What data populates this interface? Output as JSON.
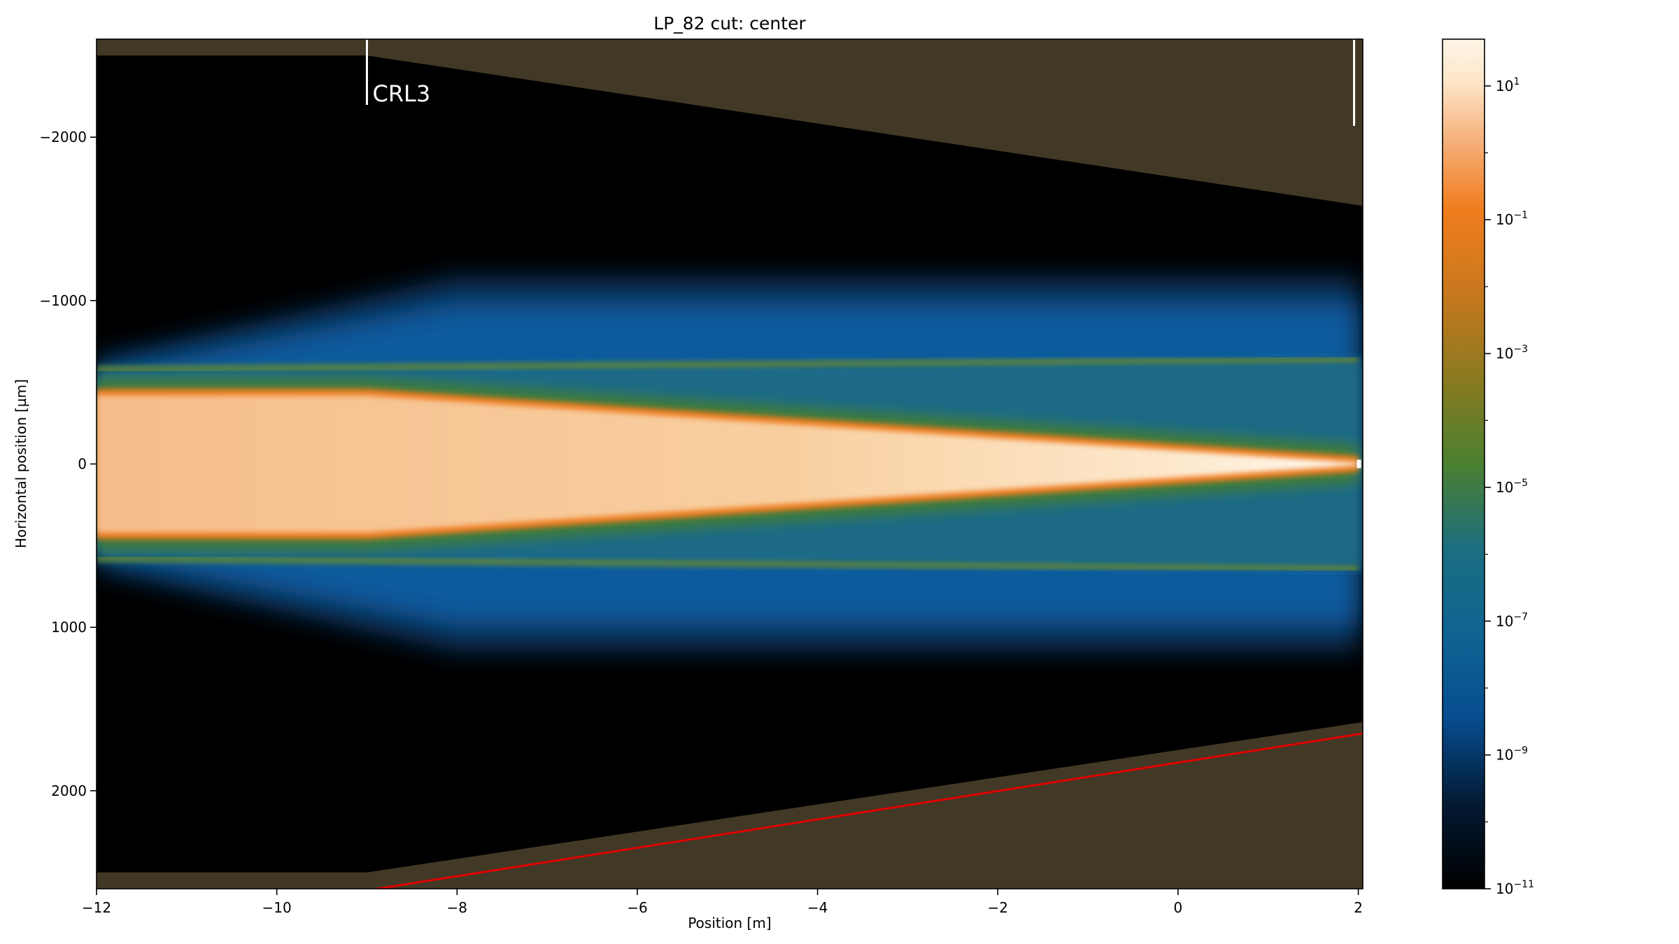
{
  "chart_data": {
    "type": "heatmap",
    "title": "LP_82 cut: center",
    "xlabel": "Position [m]",
    "ylabel": "Horizontal position [µm]",
    "xlim": [
      -12,
      2.05
    ],
    "ylim": [
      -2600,
      2600
    ],
    "y_inverted": true,
    "x_ticks": [
      {
        "value": -12,
        "label": "−12"
      },
      {
        "value": -10,
        "label": "−10"
      },
      {
        "value": -8,
        "label": "−8"
      },
      {
        "value": -6,
        "label": "−6"
      },
      {
        "value": -4,
        "label": "−4"
      },
      {
        "value": -2,
        "label": "−2"
      },
      {
        "value": 0,
        "label": "0"
      },
      {
        "value": 2,
        "label": "2"
      }
    ],
    "y_ticks": [
      {
        "value": -2000,
        "label": "−2000"
      },
      {
        "value": -1000,
        "label": "−1000"
      },
      {
        "value": 0,
        "label": "0"
      },
      {
        "value": 1000,
        "label": "1000"
      },
      {
        "value": 2000,
        "label": "2000"
      }
    ],
    "colorbar": {
      "scale": "log",
      "range": [
        1e-11,
        50
      ],
      "ticks": [
        {
          "value": 10.0,
          "base": "10",
          "exp": "1"
        },
        {
          "value": 0.1,
          "base": "10",
          "exp": "−1"
        },
        {
          "value": 0.001,
          "base": "10",
          "exp": "−3"
        },
        {
          "value": 1e-05,
          "base": "10",
          "exp": "−5"
        },
        {
          "value": 1e-07,
          "base": "10",
          "exp": "−7"
        },
        {
          "value": 1e-09,
          "base": "10",
          "exp": "−9"
        },
        {
          "value": 1e-11,
          "base": "10",
          "exp": "−11"
        }
      ],
      "colors": [
        "#000000",
        "#06305c",
        "#0a5aa0",
        "#1a6a80",
        "#4a8030",
        "#8a7a20",
        "#c8781e",
        "#f07d1e",
        "#f5b07a",
        "#fde6c8",
        "#fdf5e6"
      ]
    },
    "aperture_boundary": {
      "x": [
        -12,
        -9,
        2.05
      ],
      "y_half_width": [
        2500,
        2500,
        1580
      ],
      "fill_color": "#413826"
    },
    "red_line": {
      "x": [
        -12,
        -9,
        2.05
      ],
      "y": [
        2610,
        2610,
        1650
      ],
      "color": "#e00000"
    },
    "beam": {
      "core_half_width": [
        {
          "x": -12,
          "y": 420
        },
        {
          "x": -9,
          "y": 420
        },
        {
          "x": 2,
          "y": 8
        }
      ],
      "fringe_y": [
        {
          "x": -12,
          "y": 580
        },
        {
          "x": 2,
          "y": 640
        }
      ],
      "halo_half_width": [
        {
          "x": -12,
          "y": 650
        },
        {
          "x": -8,
          "y": 1150
        },
        {
          "x": 2,
          "y": 1150
        }
      ]
    },
    "markers": [
      {
        "x": -9,
        "label": "CRL3",
        "color": "#ffffff"
      },
      {
        "x": 2,
        "label": "",
        "color": "#ffffff"
      }
    ]
  }
}
